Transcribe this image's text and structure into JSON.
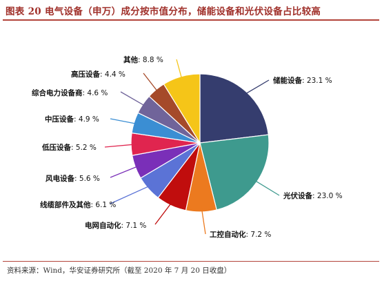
{
  "title": "图表 20 电气设备（申万）成分按市值分布，储能设备和光伏设备占比较高",
  "source": "资料来源：Wind，华安证券研究所（截至 2020 年 7 月 20 日收盘）",
  "chart_data": {
    "type": "pie",
    "start_angle_deg": 0,
    "direction": "clockwise",
    "slices": [
      {
        "label": "储能设备",
        "value": 23.1,
        "value_text": "23.1 %",
        "color": "#353d6e"
      },
      {
        "label": "光伏设备",
        "value": 23.0,
        "value_text": "23.0 %",
        "color": "#3e9a8e"
      },
      {
        "label": "工控自动化",
        "value": 7.2,
        "value_text": "7.2 %",
        "color": "#ec7a1f"
      },
      {
        "label": "电网自动化",
        "value": 7.1,
        "value_text": "7.1 %",
        "color": "#c00d0d"
      },
      {
        "label": "线缆部件及其他",
        "value": 6.1,
        "value_text": "6.1 %",
        "color": "#5b73d6"
      },
      {
        "label": "风电设备",
        "value": 5.6,
        "value_text": "5.6 %",
        "color": "#7a2fb8"
      },
      {
        "label": "低压设备",
        "value": 5.2,
        "value_text": "5.2 %",
        "color": "#e0254f"
      },
      {
        "label": "中压设备",
        "value": 4.9,
        "value_text": "4.9 %",
        "color": "#3b8ed3"
      },
      {
        "label": "综合电力设备商",
        "value": 4.6,
        "value_text": "4.6 %",
        "color": "#70649a"
      },
      {
        "label": "高压设备",
        "value": 4.4,
        "value_text": "4.4 %",
        "color": "#a54a2a"
      },
      {
        "label": "其他",
        "value": 8.8,
        "value_text": "8.8 %",
        "color": "#f5c518"
      }
    ]
  }
}
